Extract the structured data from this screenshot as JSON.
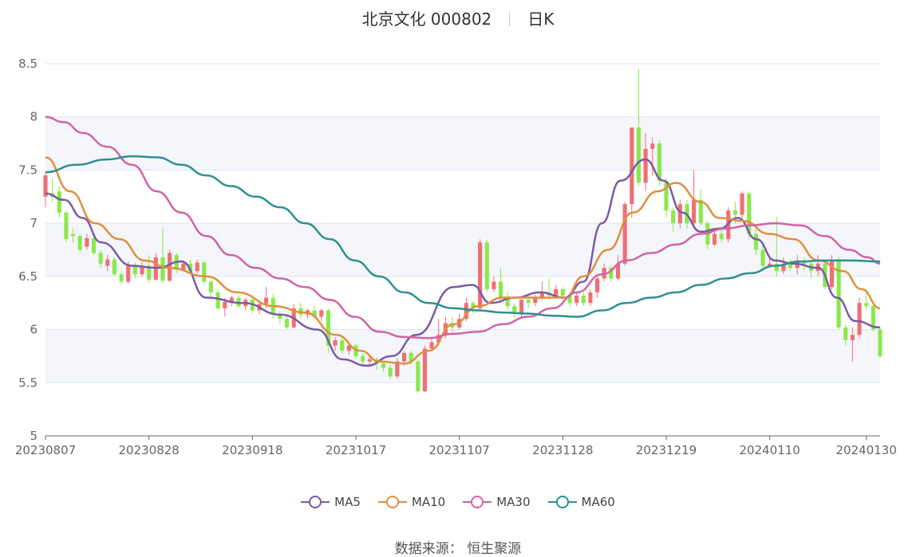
{
  "header": {
    "stock": "北京文化 000802",
    "period": "日K"
  },
  "footer": {
    "source_label": "数据来源：",
    "source_name": "恒生聚源"
  },
  "colors": {
    "up": "#f06f74",
    "down": "#8be84a",
    "MA5": "#7a5aa8",
    "MA10": "#e08f3d",
    "MA30": "#d163a6",
    "MA60": "#2f9090",
    "grid": "#e1e5f0",
    "band": "#f4f6fb"
  },
  "chart_data": {
    "type": "candlestick",
    "yaxis": {
      "min": 5,
      "max": 8.5,
      "ticks": [
        "5",
        "5.5",
        "6",
        "6.5",
        "7",
        "7.5",
        "8",
        "8.5"
      ]
    },
    "xaxis": {
      "tick_labels": [
        "20230807",
        "20230828",
        "20230918",
        "20231017",
        "20231107",
        "20231128",
        "20231219",
        "20240110",
        "20240130"
      ],
      "tick_index": [
        0,
        15,
        30,
        45,
        60,
        75,
        90,
        105,
        119
      ]
    },
    "legend": [
      "MA5",
      "MA10",
      "MA30",
      "MA60"
    ],
    "candles": [
      [
        7.25,
        7.45,
        7.48,
        7.15
      ],
      [
        7.28,
        7.25,
        7.42,
        7.2
      ],
      [
        7.3,
        7.1,
        7.35,
        7.05
      ],
      [
        7.1,
        6.85,
        7.12,
        6.82
      ],
      [
        6.9,
        6.88,
        6.95,
        6.82
      ],
      [
        6.88,
        6.75,
        6.9,
        6.72
      ],
      [
        6.78,
        6.86,
        6.9,
        6.75
      ],
      [
        6.86,
        6.72,
        6.9,
        6.7
      ],
      [
        6.72,
        6.62,
        6.75,
        6.58
      ],
      [
        6.6,
        6.66,
        6.7,
        6.55
      ],
      [
        6.66,
        6.52,
        6.68,
        6.5
      ],
      [
        6.52,
        6.45,
        6.55,
        6.42
      ],
      [
        6.45,
        6.6,
        6.64,
        6.43
      ],
      [
        6.6,
        6.52,
        6.63,
        6.48
      ],
      [
        6.52,
        6.6,
        6.64,
        6.5
      ],
      [
        6.6,
        6.47,
        6.7,
        6.44
      ],
      [
        6.47,
        6.68,
        6.72,
        6.46
      ],
      [
        6.68,
        6.46,
        6.95,
        6.44
      ],
      [
        6.46,
        6.72,
        6.75,
        6.45
      ],
      [
        6.7,
        6.56,
        6.72,
        6.53
      ],
      [
        6.56,
        6.62,
        6.65,
        6.55
      ],
      [
        6.62,
        6.55,
        6.66,
        6.52
      ],
      [
        6.55,
        6.63,
        6.66,
        6.53
      ],
      [
        6.63,
        6.45,
        6.65,
        6.42
      ],
      [
        6.45,
        6.35,
        6.47,
        6.3
      ],
      [
        6.35,
        6.2,
        6.38,
        6.18
      ],
      [
        6.2,
        6.26,
        6.3,
        6.12
      ],
      [
        6.26,
        6.3,
        6.32,
        6.22
      ],
      [
        6.3,
        6.22,
        6.33,
        6.2
      ],
      [
        6.22,
        6.28,
        6.3,
        6.18
      ],
      [
        6.28,
        6.18,
        6.31,
        6.15
      ],
      [
        6.18,
        6.24,
        6.27,
        6.14
      ],
      [
        6.24,
        6.3,
        6.4,
        6.2
      ],
      [
        6.3,
        6.14,
        6.34,
        6.1
      ],
      [
        6.14,
        6.1,
        6.18,
        6.05
      ],
      [
        6.1,
        6.02,
        6.12,
        6.0
      ],
      [
        6.02,
        6.2,
        6.24,
        6.01
      ],
      [
        6.2,
        6.14,
        6.25,
        6.1
      ],
      [
        6.14,
        6.18,
        6.2,
        6.1
      ],
      [
        6.18,
        6.12,
        6.22,
        6.1
      ],
      [
        6.12,
        6.18,
        6.2,
        6.08
      ],
      [
        6.18,
        5.85,
        6.2,
        5.78
      ],
      [
        5.85,
        5.9,
        5.93,
        5.8
      ],
      [
        5.9,
        5.8,
        5.92,
        5.77
      ],
      [
        5.8,
        5.85,
        5.88,
        5.76
      ],
      [
        5.85,
        5.75,
        5.87,
        5.72
      ],
      [
        5.75,
        5.7,
        5.78,
        5.66
      ],
      [
        5.7,
        5.72,
        5.75,
        5.66
      ],
      [
        5.72,
        5.68,
        5.74,
        5.62
      ],
      [
        5.68,
        5.64,
        5.7,
        5.6
      ],
      [
        5.64,
        5.56,
        5.67,
        5.53
      ],
      [
        5.56,
        5.7,
        5.73,
        5.54
      ],
      [
        5.7,
        5.78,
        5.8,
        5.66
      ],
      [
        5.78,
        5.7,
        5.8,
        5.67
      ],
      [
        5.7,
        5.42,
        5.72,
        5.4
      ],
      [
        5.42,
        5.82,
        5.85,
        5.41
      ],
      [
        5.82,
        5.88,
        5.92,
        5.8
      ],
      [
        5.88,
        5.95,
        6.1,
        5.85
      ],
      [
        5.95,
        6.06,
        6.12,
        5.92
      ],
      [
        6.06,
        6.02,
        6.12,
        5.98
      ],
      [
        6.02,
        6.1,
        6.15,
        6.0
      ],
      [
        6.1,
        6.25,
        6.3,
        6.08
      ],
      [
        6.25,
        6.2,
        6.27,
        6.15
      ],
      [
        6.2,
        6.82,
        6.85,
        6.18
      ],
      [
        6.82,
        6.38,
        6.84,
        6.35
      ],
      [
        6.38,
        6.45,
        6.5,
        6.35
      ],
      [
        6.45,
        6.3,
        6.58,
        6.25
      ],
      [
        6.3,
        6.22,
        6.35,
        6.18
      ],
      [
        6.22,
        6.15,
        6.25,
        6.1
      ],
      [
        6.15,
        6.28,
        6.3,
        6.12
      ],
      [
        6.28,
        6.25,
        6.32,
        6.2
      ],
      [
        6.25,
        6.3,
        6.33,
        6.22
      ],
      [
        6.3,
        6.35,
        6.45,
        6.28
      ],
      [
        6.35,
        6.32,
        6.48,
        6.28
      ],
      [
        6.32,
        6.38,
        6.42,
        6.3
      ],
      [
        6.38,
        6.32,
        6.4,
        6.28
      ],
      [
        6.32,
        6.25,
        6.35,
        6.22
      ],
      [
        6.25,
        6.32,
        6.35,
        6.22
      ],
      [
        6.32,
        6.25,
        6.35,
        6.22
      ],
      [
        6.25,
        6.35,
        6.38,
        6.22
      ],
      [
        6.35,
        6.48,
        6.52,
        6.3
      ],
      [
        6.48,
        6.58,
        6.62,
        6.45
      ],
      [
        6.58,
        6.48,
        6.6,
        6.45
      ],
      [
        6.48,
        6.62,
        6.7,
        6.46
      ],
      [
        6.62,
        7.18,
        7.2,
        6.6
      ],
      [
        7.18,
        7.9,
        7.9,
        7.05
      ],
      [
        7.9,
        7.38,
        8.45,
        7.35
      ],
      [
        7.38,
        7.7,
        7.85,
        7.3
      ],
      [
        7.7,
        7.75,
        7.8,
        7.45
      ],
      [
        7.75,
        7.4,
        7.78,
        7.35
      ],
      [
        7.4,
        7.12,
        7.42,
        7.05
      ],
      [
        7.12,
        7.0,
        7.15,
        6.92
      ],
      [
        7.0,
        7.18,
        7.22,
        6.95
      ],
      [
        7.18,
        7.0,
        7.22,
        6.95
      ],
      [
        7.0,
        7.22,
        7.5,
        6.98
      ],
      [
        7.22,
        7.0,
        7.32,
        6.98
      ],
      [
        7.0,
        6.8,
        7.02,
        6.75
      ],
      [
        6.8,
        6.9,
        6.95,
        6.78
      ],
      [
        6.9,
        6.85,
        6.95,
        6.82
      ],
      [
        6.85,
        7.12,
        7.15,
        6.82
      ],
      [
        7.12,
        7.08,
        7.2,
        7.0
      ],
      [
        7.08,
        7.28,
        7.3,
        7.05
      ],
      [
        7.28,
        6.9,
        7.3,
        6.85
      ],
      [
        6.9,
        6.75,
        6.95,
        6.7
      ],
      [
        6.75,
        6.6,
        6.8,
        6.55
      ],
      [
        6.6,
        6.62,
        6.68,
        6.58
      ],
      [
        6.62,
        6.55,
        7.06,
        6.5
      ],
      [
        6.55,
        6.62,
        6.68,
        6.52
      ],
      [
        6.62,
        6.58,
        6.66,
        6.55
      ],
      [
        6.58,
        6.65,
        6.7,
        6.52
      ],
      [
        6.65,
        6.62,
        6.68,
        6.55
      ],
      [
        6.62,
        6.55,
        6.65,
        6.48
      ],
      [
        6.55,
        6.62,
        6.7,
        6.5
      ],
      [
        6.62,
        6.4,
        6.65,
        6.38
      ],
      [
        6.4,
        6.65,
        6.7,
        6.38
      ],
      [
        6.65,
        6.02,
        6.68,
        6.0
      ],
      [
        6.02,
        5.9,
        6.05,
        5.85
      ],
      [
        5.9,
        5.95,
        6.02,
        5.7
      ],
      [
        5.95,
        6.25,
        6.3,
        5.92
      ],
      [
        6.25,
        6.22,
        6.38,
        6.18
      ],
      [
        6.22,
        6.0,
        6.24,
        5.98
      ],
      [
        6.0,
        5.75,
        6.02,
        5.73
      ]
    ],
    "ma": {
      "MA5": [
        [
          0,
          7.28
        ],
        [
          3,
          7.22
        ],
        [
          6,
          7.05
        ],
        [
          9,
          6.82
        ],
        [
          14,
          6.6
        ],
        [
          18,
          6.58
        ],
        [
          22,
          6.64
        ],
        [
          26,
          6.3
        ],
        [
          32,
          6.25
        ],
        [
          38,
          6.14
        ],
        [
          44,
          6.0
        ],
        [
          48,
          5.72
        ],
        [
          52,
          5.66
        ],
        [
          56,
          5.75
        ],
        [
          60,
          5.95
        ],
        [
          66,
          6.4
        ],
        [
          69,
          6.42
        ],
        [
          72,
          6.25
        ],
        [
          76,
          6.3
        ],
        [
          80,
          6.35
        ],
        [
          84,
          6.3
        ],
        [
          87,
          6.45
        ],
        [
          90,
          7.0
        ],
        [
          93,
          7.4
        ],
        [
          97,
          7.6
        ],
        [
          100,
          7.4
        ],
        [
          103,
          7.1
        ],
        [
          106,
          6.92
        ],
        [
          109,
          6.95
        ],
        [
          112,
          7.05
        ],
        [
          115,
          6.85
        ],
        [
          118,
          6.65
        ],
        [
          121,
          6.62
        ],
        [
          125,
          6.58
        ],
        [
          128,
          6.3
        ],
        [
          131,
          6.08
        ],
        [
          135,
          6.02
        ]
      ],
      "MA10": [
        [
          0,
          7.62
        ],
        [
          4,
          7.3
        ],
        [
          8,
          7.0
        ],
        [
          12,
          6.85
        ],
        [
          16,
          6.65
        ],
        [
          20,
          6.58
        ],
        [
          26,
          6.5
        ],
        [
          31,
          6.35
        ],
        [
          37,
          6.22
        ],
        [
          42,
          6.16
        ],
        [
          47,
          5.95
        ],
        [
          51,
          5.8
        ],
        [
          54,
          5.7
        ],
        [
          58,
          5.68
        ],
        [
          62,
          5.8
        ],
        [
          66,
          6.05
        ],
        [
          70,
          6.22
        ],
        [
          74,
          6.3
        ],
        [
          79,
          6.3
        ],
        [
          84,
          6.3
        ],
        [
          87,
          6.5
        ],
        [
          91,
          6.75
        ],
        [
          95,
          7.1
        ],
        [
          99,
          7.3
        ],
        [
          102,
          7.38
        ],
        [
          106,
          7.2
        ],
        [
          109,
          7.05
        ],
        [
          113,
          7.02
        ],
        [
          117,
          6.9
        ],
        [
          121,
          6.85
        ],
        [
          125,
          6.65
        ],
        [
          129,
          6.55
        ],
        [
          132,
          6.38
        ],
        [
          135,
          6.2
        ]
      ],
      "MA30": [
        [
          0,
          8.0
        ],
        [
          3,
          7.95
        ],
        [
          6,
          7.85
        ],
        [
          10,
          7.72
        ],
        [
          14,
          7.55
        ],
        [
          18,
          7.3
        ],
        [
          22,
          7.1
        ],
        [
          26,
          6.88
        ],
        [
          30,
          6.7
        ],
        [
          34,
          6.58
        ],
        [
          38,
          6.48
        ],
        [
          42,
          6.4
        ],
        [
          46,
          6.28
        ],
        [
          50,
          6.12
        ],
        [
          54,
          5.98
        ],
        [
          58,
          5.93
        ],
        [
          62,
          5.92
        ],
        [
          66,
          5.96
        ],
        [
          70,
          5.98
        ],
        [
          74,
          6.05
        ],
        [
          78,
          6.12
        ],
        [
          82,
          6.2
        ],
        [
          86,
          6.35
        ],
        [
          90,
          6.52
        ],
        [
          94,
          6.65
        ],
        [
          98,
          6.72
        ],
        [
          102,
          6.8
        ],
        [
          106,
          6.9
        ],
        [
          110,
          6.95
        ],
        [
          114,
          6.98
        ],
        [
          118,
          7.0
        ],
        [
          122,
          6.98
        ],
        [
          126,
          6.88
        ],
        [
          130,
          6.75
        ],
        [
          133,
          6.68
        ],
        [
          135,
          6.62
        ]
      ],
      "MA60": [
        [
          0,
          7.48
        ],
        [
          5,
          7.55
        ],
        [
          10,
          7.6
        ],
        [
          14,
          7.63
        ],
        [
          18,
          7.62
        ],
        [
          22,
          7.55
        ],
        [
          26,
          7.45
        ],
        [
          30,
          7.35
        ],
        [
          34,
          7.25
        ],
        [
          38,
          7.15
        ],
        [
          42,
          7.0
        ],
        [
          46,
          6.85
        ],
        [
          50,
          6.65
        ],
        [
          54,
          6.5
        ],
        [
          58,
          6.35
        ],
        [
          62,
          6.25
        ],
        [
          66,
          6.2
        ],
        [
          70,
          6.18
        ],
        [
          74,
          6.16
        ],
        [
          78,
          6.15
        ],
        [
          82,
          6.13
        ],
        [
          86,
          6.12
        ],
        [
          90,
          6.18
        ],
        [
          94,
          6.25
        ],
        [
          98,
          6.3
        ],
        [
          102,
          6.35
        ],
        [
          106,
          6.42
        ],
        [
          110,
          6.48
        ],
        [
          114,
          6.53
        ],
        [
          118,
          6.6
        ],
        [
          122,
          6.64
        ],
        [
          126,
          6.65
        ],
        [
          130,
          6.65
        ],
        [
          135,
          6.64
        ]
      ]
    }
  }
}
